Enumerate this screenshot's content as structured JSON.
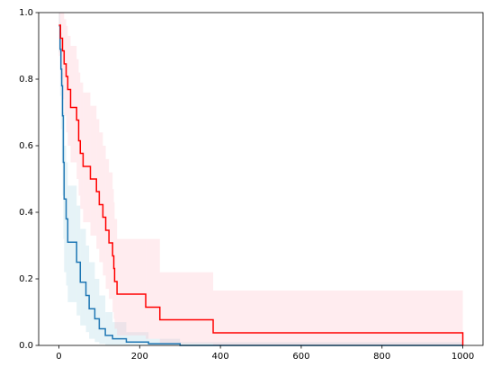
{
  "chart_data": {
    "type": "step",
    "xlim": [
      -50,
      1050
    ],
    "ylim": [
      0,
      1
    ],
    "xticks": [
      0,
      200,
      400,
      600,
      800,
      1000
    ],
    "yticks": [
      {
        "value": 0,
        "label": "0.0"
      },
      {
        "value": 0.2,
        "label": "0.2"
      },
      {
        "value": 0.4,
        "label": "0.4"
      },
      {
        "value": 0.6,
        "label": "0.6"
      },
      {
        "value": 0.8,
        "label": "0.8"
      },
      {
        "value": 1,
        "label": "1.0"
      }
    ],
    "series": [
      {
        "color": "#1f77b4",
        "band_color": "#add8e6",
        "x": [
          0,
          3,
          5,
          7,
          9,
          11,
          13,
          18,
          22,
          44,
          53,
          67,
          75,
          89,
          100,
          115,
          133,
          167,
          222,
          300,
          1000
        ],
        "values": [
          0.96,
          0.89,
          0.83,
          0.78,
          0.69,
          0.55,
          0.44,
          0.38,
          0.31,
          0.25,
          0.19,
          0.15,
          0.11,
          0.08,
          0.05,
          0.03,
          0.02,
          0.01,
          0.005,
          0,
          0
        ],
        "upper": [
          1,
          0.97,
          0.94,
          0.9,
          0.82,
          0.7,
          0.6,
          0.55,
          0.48,
          0.42,
          0.35,
          0.3,
          0.25,
          0.2,
          0.15,
          0.1,
          0.07,
          0.04,
          0.02,
          0.01,
          0
        ],
        "lower": [
          0.88,
          0.75,
          0.65,
          0.55,
          0.45,
          0.32,
          0.22,
          0.18,
          0.13,
          0.09,
          0.06,
          0.04,
          0.02,
          0.01,
          0.005,
          0,
          0,
          0,
          0,
          0,
          0
        ]
      },
      {
        "color": "#ff0000",
        "band_color": "#ffc0cb",
        "x": [
          0,
          4,
          9,
          13,
          18,
          22,
          29,
          44,
          49,
          53,
          60,
          78,
          93,
          100,
          109,
          116,
          124,
          133,
          136,
          138,
          144,
          215,
          250,
          382,
          1000
        ],
        "values": [
          0.962,
          0.923,
          0.885,
          0.846,
          0.808,
          0.769,
          0.715,
          0.677,
          0.615,
          0.577,
          0.538,
          0.5,
          0.462,
          0.423,
          0.385,
          0.346,
          0.308,
          0.269,
          0.231,
          0.192,
          0.154,
          0.115,
          0.077,
          0.038,
          0
        ],
        "upper": [
          1,
          1,
          1,
          0.98,
          0.96,
          0.93,
          0.9,
          0.86,
          0.82,
          0.79,
          0.76,
          0.72,
          0.68,
          0.64,
          0.6,
          0.56,
          0.52,
          0.47,
          0.43,
          0.38,
          0.32,
          0.32,
          0.22,
          0.165,
          0.165
        ],
        "lower": [
          0.87,
          0.8,
          0.74,
          0.69,
          0.64,
          0.6,
          0.55,
          0.5,
          0.45,
          0.41,
          0.37,
          0.33,
          0.29,
          0.25,
          0.21,
          0.17,
          0.14,
          0.1,
          0.08,
          0.05,
          0.03,
          0.02,
          0.005,
          0,
          0
        ]
      }
    ]
  }
}
